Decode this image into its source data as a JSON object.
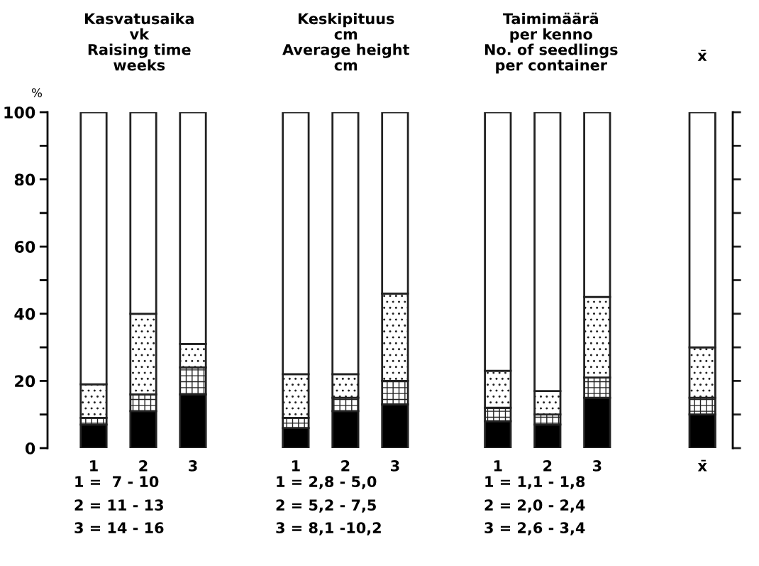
{
  "chart_data": {
    "type": "bar",
    "stacked": true,
    "ylabel": "%",
    "categories": [
      "1",
      "2",
      "3",
      "1",
      "2",
      "3",
      "1",
      "2",
      "3",
      "x̄"
    ],
    "series": [
      {
        "color": "#000000",
        "values": [
          7,
          11,
          16,
          6,
          11,
          13,
          8,
          7,
          15,
          10
        ]
      },
      {
        "color": "#222222",
        "values": [
          2,
          5,
          8,
          3,
          4,
          7,
          4,
          3,
          6,
          5
        ]
      },
      {
        "color": "#222222",
        "values": [
          10,
          24,
          7,
          13,
          7,
          26,
          11,
          7,
          24,
          15
        ]
      },
      {
        "color": "#ffffff",
        "values": [
          81,
          60,
          69,
          78,
          78,
          54,
          77,
          83,
          55,
          70
        ]
      }
    ],
    "ylim": [
      0,
      100
    ],
    "yticks": [
      0,
      {
        "value": 10,
        "label": null
      },
      20,
      {
        "value": 30,
        "label": null
      },
      40,
      {
        "value": 50,
        "label": null
      },
      60,
      {
        "value": 70,
        "label": null
      },
      80,
      {
        "value": 90,
        "label": null
      },
      100
    ],
    "annotations": [
      "Kasvatusaika\nvk\nRaising time\nweeks",
      "Keskipituus\ncm\nAverage height\ncm",
      "Taimimäärä\nper kenno\nNo. of seedlings\nper container",
      "x̄",
      "1 =  7 - 10",
      "2 = 11 - 13",
      "3 = 14 - 16",
      "1 = 2,8 - 5,0",
      "2 = 5,2 - 7,5",
      "3 = 8,1 -10,2",
      "1 = 1,1 - 1,8",
      "2 = 2,0 - 2,4",
      "3 = 2,6 - 3,4"
    ]
  }
}
